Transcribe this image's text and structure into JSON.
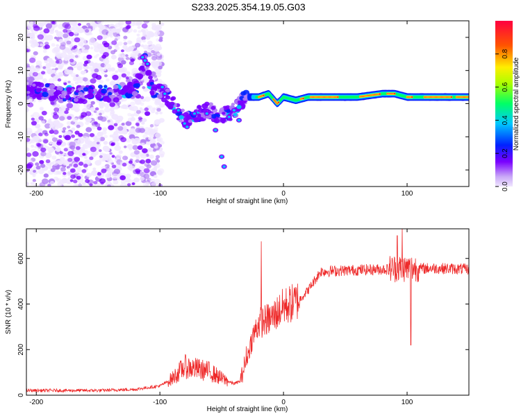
{
  "title": "S233.2025.354.19.05.G03",
  "colors": {
    "snr_line": "#ee2a2a",
    "spectrogram": [
      "#f0e6ff",
      "#b07cf5",
      "#7a00ff",
      "#0022ff",
      "#00c8ff",
      "#00ff66",
      "#ffee00",
      "#ff5500",
      "#ff0040"
    ]
  },
  "chart_data": [
    {
      "type": "heatmap",
      "xlabel": "Height of straight line (km)",
      "ylabel": "Frequency (Hz)",
      "xlim": [
        -208,
        150
      ],
      "ylim": [
        -25,
        25
      ],
      "x_ticks": [
        -200,
        -100,
        0,
        100
      ],
      "y_ticks": [
        -20,
        -10,
        0,
        10,
        20
      ],
      "ridge": {
        "x": [
          -200,
          -180,
          -160,
          -140,
          -120,
          -112,
          -105,
          -98,
          -90,
          -80,
          -70,
          -60,
          -50,
          -40,
          -30,
          -20,
          -12,
          -5,
          0,
          10,
          20,
          30,
          40,
          60,
          80,
          90,
          100,
          110,
          130,
          150
        ],
        "frequency": [
          4,
          3,
          3,
          3,
          4,
          13,
          3,
          4,
          0,
          -5,
          -3,
          -2,
          -4,
          -2,
          2,
          2,
          3,
          0,
          2,
          1,
          2,
          2,
          2,
          2,
          3,
          3,
          2,
          2,
          2,
          2
        ]
      },
      "colorbar": {
        "label": "Normalized spectral amplitude",
        "range": [
          0,
          1
        ],
        "ticks": [
          "0.0",
          "0.2",
          "0.4",
          "0.6",
          "0.8"
        ]
      }
    },
    {
      "type": "line",
      "xlabel": "Height of straight line (km)",
      "ylabel": "SNR (10 * v/v)",
      "xlim": [
        -208,
        150
      ],
      "ylim": [
        0,
        730
      ],
      "x_ticks": [
        -200,
        -100,
        0,
        100
      ],
      "y_ticks": [
        0,
        200,
        400,
        600
      ],
      "trend": {
        "x": [
          -208,
          -150,
          -120,
          -100,
          -90,
          -80,
          -70,
          -60,
          -50,
          -40,
          -35,
          -30,
          -25,
          -20,
          -10,
          0,
          10,
          20,
          25,
          30,
          50,
          80,
          100,
          120,
          150
        ],
        "snr": [
          20,
          20,
          25,
          40,
          70,
          120,
          110,
          100,
          70,
          50,
          60,
          150,
          250,
          310,
          330,
          380,
          400,
          460,
          500,
          540,
          545,
          550,
          550,
          555,
          550
        ]
      },
      "spikes": [
        {
          "x": -18,
          "snr": 675
        },
        {
          "x": 92,
          "snr": 700
        },
        {
          "x": 96,
          "snr": 730
        },
        {
          "x": 103,
          "snr": 220
        }
      ]
    }
  ]
}
